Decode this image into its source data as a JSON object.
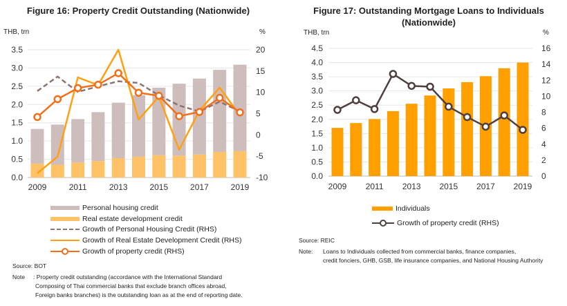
{
  "left": {
    "title": "Figure 16: Property Credit Outstanding (Nationwide)",
    "legend": [
      "Personal housing credit",
      "Real estate development credit",
      "Growth of Personal Housing Credit (RHS)",
      "Growth of Real Estate Development Credit (RHS)",
      "Growth of property credit (RHS)"
    ],
    "source": "Source: BOT",
    "note_label": "Note",
    "note_lines": [
      ": Property credit outstanding (accordance with the International Standard",
      "Composing of Thai commercial banks that exclude branch offices abroad,",
      "Foreign banks branches) is the outstanding loan as at the end of reporting date."
    ]
  },
  "right": {
    "title_line1": "Figure 17:  Outstanding Mortgage Loans to Individuals",
    "title_line2": "(Nationwide)",
    "legend": [
      "Individuals",
      "Growth of property credit (RHS)"
    ],
    "source": "Source: REIC",
    "note_label": "Note:",
    "note_lines": [
      "Loans to Individuals collected from commercial banks, finance companies,",
      "credit fonciers, GHB, GSB, life insurance companies, and National Housing Authority"
    ]
  },
  "chart_data": [
    {
      "type": "bar+line",
      "title": "Figure 16: Property Credit Outstanding (Nationwide)",
      "ylabel": "THB, trn",
      "y2label": "%",
      "ylim": [
        0,
        3.5
      ],
      "yticks": [
        "0.0",
        "0.5",
        "1.0",
        "1.5",
        "2.0",
        "2.5",
        "3.0",
        "3.5"
      ],
      "y2lim": [
        -10,
        20
      ],
      "y2ticks": [
        "-10",
        "-5",
        "0",
        "5",
        "10",
        "15",
        "20"
      ],
      "categories": [
        2009,
        2010,
        2011,
        2012,
        2013,
        2014,
        2015,
        2016,
        2017,
        2018,
        2019
      ],
      "xticklabels": [
        "2009",
        "2011",
        "2013",
        "2015",
        "2017",
        "2019"
      ],
      "grid": true,
      "legend_position": "bottom",
      "stacked_bars": [
        {
          "name": "Real estate development credit",
          "color": "#FFC266",
          "values": [
            0.38,
            0.35,
            0.41,
            0.45,
            0.53,
            0.57,
            0.61,
            0.6,
            0.63,
            0.7,
            0.72
          ]
        },
        {
          "name": "Personal housing credit",
          "color": "#CDBDBD",
          "values": [
            0.95,
            1.1,
            1.19,
            1.34,
            1.52,
            1.68,
            1.85,
            1.97,
            2.08,
            2.25,
            2.37
          ]
        }
      ],
      "lines": [
        {
          "name": "Growth of Personal Housing Credit (RHS)",
          "color": "#8C7470",
          "style": "dashed",
          "values": [
            10.3,
            13.7,
            10.1,
            11.4,
            12.6,
            12.2,
            9.3,
            6.9,
            5.5,
            7.8,
            5.5
          ]
        },
        {
          "name": "Growth of Real Estate Development Credit (RHS)",
          "color": "#FFA010",
          "style": "solid",
          "values": [
            -9.0,
            -5.1,
            13.5,
            11.7,
            20.0,
            3.6,
            9.0,
            -3.5,
            5.7,
            11.1,
            4.6
          ]
        },
        {
          "name": "Growth of property credit (RHS)",
          "color": "#F26F1A",
          "style": "marker",
          "values": [
            4.2,
            8.4,
            11.0,
            11.8,
            14.5,
            9.9,
            9.2,
            4.4,
            5.4,
            8.7,
            5.3
          ]
        }
      ]
    },
    {
      "type": "bar+line",
      "title": "Figure 17:  Outstanding Mortgage Loans to Individuals (Nationwide)",
      "ylabel": "THB, trn",
      "y2label": "%",
      "ylim": [
        0,
        4.5
      ],
      "yticks": [
        "0.0",
        "0.5",
        "1.0",
        "1.5",
        "2.0",
        "2.5",
        "3.0",
        "3.5",
        "4.0",
        "4.5"
      ],
      "y2lim": [
        0,
        16
      ],
      "y2ticks": [
        "0",
        "2",
        "4",
        "6",
        "8",
        "10",
        "12",
        "14",
        "16"
      ],
      "categories": [
        2009,
        2010,
        2011,
        2012,
        2013,
        2014,
        2015,
        2016,
        2017,
        2018,
        2019
      ],
      "xticklabels": [
        "2009",
        "2011",
        "2013",
        "2015",
        "2017",
        "2019"
      ],
      "grid": true,
      "legend_position": "bottom",
      "stacked_bars": [
        {
          "name": "Individuals",
          "color": "#FF9F00",
          "values": [
            1.7,
            1.87,
            2.01,
            2.29,
            2.55,
            2.84,
            3.09,
            3.31,
            3.52,
            3.8,
            4.0
          ]
        }
      ],
      "lines": [
        {
          "name": "Growth of property credit (RHS)",
          "color": "#4D3F3D",
          "style": "marker",
          "values": [
            8.3,
            9.5,
            8.4,
            12.8,
            11.3,
            11.2,
            8.7,
            7.4,
            6.2,
            7.6,
            5.8
          ]
        }
      ]
    }
  ]
}
